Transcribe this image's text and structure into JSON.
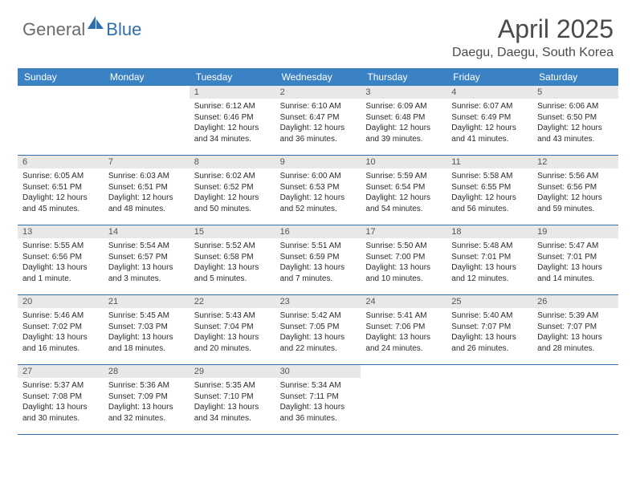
{
  "logo": {
    "text1": "General",
    "text2": "Blue"
  },
  "title": "April 2025",
  "location": "Daegu, Daegu, South Korea",
  "colors": {
    "header_bg": "#3b82c4",
    "header_text": "#ffffff",
    "divider": "#2f6fad",
    "daynum_bg": "#e8e8e8",
    "body_text": "#2b2b2b",
    "logo_gray": "#6b6b6b",
    "logo_blue": "#2f6fad"
  },
  "day_headers": [
    "Sunday",
    "Monday",
    "Tuesday",
    "Wednesday",
    "Thursday",
    "Friday",
    "Saturday"
  ],
  "weeks": [
    [
      {
        "n": "",
        "sunrise": "",
        "sunset": "",
        "daylight": ""
      },
      {
        "n": "",
        "sunrise": "",
        "sunset": "",
        "daylight": ""
      },
      {
        "n": "1",
        "sunrise": "Sunrise: 6:12 AM",
        "sunset": "Sunset: 6:46 PM",
        "daylight": "Daylight: 12 hours and 34 minutes."
      },
      {
        "n": "2",
        "sunrise": "Sunrise: 6:10 AM",
        "sunset": "Sunset: 6:47 PM",
        "daylight": "Daylight: 12 hours and 36 minutes."
      },
      {
        "n": "3",
        "sunrise": "Sunrise: 6:09 AM",
        "sunset": "Sunset: 6:48 PM",
        "daylight": "Daylight: 12 hours and 39 minutes."
      },
      {
        "n": "4",
        "sunrise": "Sunrise: 6:07 AM",
        "sunset": "Sunset: 6:49 PM",
        "daylight": "Daylight: 12 hours and 41 minutes."
      },
      {
        "n": "5",
        "sunrise": "Sunrise: 6:06 AM",
        "sunset": "Sunset: 6:50 PM",
        "daylight": "Daylight: 12 hours and 43 minutes."
      }
    ],
    [
      {
        "n": "6",
        "sunrise": "Sunrise: 6:05 AM",
        "sunset": "Sunset: 6:51 PM",
        "daylight": "Daylight: 12 hours and 45 minutes."
      },
      {
        "n": "7",
        "sunrise": "Sunrise: 6:03 AM",
        "sunset": "Sunset: 6:51 PM",
        "daylight": "Daylight: 12 hours and 48 minutes."
      },
      {
        "n": "8",
        "sunrise": "Sunrise: 6:02 AM",
        "sunset": "Sunset: 6:52 PM",
        "daylight": "Daylight: 12 hours and 50 minutes."
      },
      {
        "n": "9",
        "sunrise": "Sunrise: 6:00 AM",
        "sunset": "Sunset: 6:53 PM",
        "daylight": "Daylight: 12 hours and 52 minutes."
      },
      {
        "n": "10",
        "sunrise": "Sunrise: 5:59 AM",
        "sunset": "Sunset: 6:54 PM",
        "daylight": "Daylight: 12 hours and 54 minutes."
      },
      {
        "n": "11",
        "sunrise": "Sunrise: 5:58 AM",
        "sunset": "Sunset: 6:55 PM",
        "daylight": "Daylight: 12 hours and 56 minutes."
      },
      {
        "n": "12",
        "sunrise": "Sunrise: 5:56 AM",
        "sunset": "Sunset: 6:56 PM",
        "daylight": "Daylight: 12 hours and 59 minutes."
      }
    ],
    [
      {
        "n": "13",
        "sunrise": "Sunrise: 5:55 AM",
        "sunset": "Sunset: 6:56 PM",
        "daylight": "Daylight: 13 hours and 1 minute."
      },
      {
        "n": "14",
        "sunrise": "Sunrise: 5:54 AM",
        "sunset": "Sunset: 6:57 PM",
        "daylight": "Daylight: 13 hours and 3 minutes."
      },
      {
        "n": "15",
        "sunrise": "Sunrise: 5:52 AM",
        "sunset": "Sunset: 6:58 PM",
        "daylight": "Daylight: 13 hours and 5 minutes."
      },
      {
        "n": "16",
        "sunrise": "Sunrise: 5:51 AM",
        "sunset": "Sunset: 6:59 PM",
        "daylight": "Daylight: 13 hours and 7 minutes."
      },
      {
        "n": "17",
        "sunrise": "Sunrise: 5:50 AM",
        "sunset": "Sunset: 7:00 PM",
        "daylight": "Daylight: 13 hours and 10 minutes."
      },
      {
        "n": "18",
        "sunrise": "Sunrise: 5:48 AM",
        "sunset": "Sunset: 7:01 PM",
        "daylight": "Daylight: 13 hours and 12 minutes."
      },
      {
        "n": "19",
        "sunrise": "Sunrise: 5:47 AM",
        "sunset": "Sunset: 7:01 PM",
        "daylight": "Daylight: 13 hours and 14 minutes."
      }
    ],
    [
      {
        "n": "20",
        "sunrise": "Sunrise: 5:46 AM",
        "sunset": "Sunset: 7:02 PM",
        "daylight": "Daylight: 13 hours and 16 minutes."
      },
      {
        "n": "21",
        "sunrise": "Sunrise: 5:45 AM",
        "sunset": "Sunset: 7:03 PM",
        "daylight": "Daylight: 13 hours and 18 minutes."
      },
      {
        "n": "22",
        "sunrise": "Sunrise: 5:43 AM",
        "sunset": "Sunset: 7:04 PM",
        "daylight": "Daylight: 13 hours and 20 minutes."
      },
      {
        "n": "23",
        "sunrise": "Sunrise: 5:42 AM",
        "sunset": "Sunset: 7:05 PM",
        "daylight": "Daylight: 13 hours and 22 minutes."
      },
      {
        "n": "24",
        "sunrise": "Sunrise: 5:41 AM",
        "sunset": "Sunset: 7:06 PM",
        "daylight": "Daylight: 13 hours and 24 minutes."
      },
      {
        "n": "25",
        "sunrise": "Sunrise: 5:40 AM",
        "sunset": "Sunset: 7:07 PM",
        "daylight": "Daylight: 13 hours and 26 minutes."
      },
      {
        "n": "26",
        "sunrise": "Sunrise: 5:39 AM",
        "sunset": "Sunset: 7:07 PM",
        "daylight": "Daylight: 13 hours and 28 minutes."
      }
    ],
    [
      {
        "n": "27",
        "sunrise": "Sunrise: 5:37 AM",
        "sunset": "Sunset: 7:08 PM",
        "daylight": "Daylight: 13 hours and 30 minutes."
      },
      {
        "n": "28",
        "sunrise": "Sunrise: 5:36 AM",
        "sunset": "Sunset: 7:09 PM",
        "daylight": "Daylight: 13 hours and 32 minutes."
      },
      {
        "n": "29",
        "sunrise": "Sunrise: 5:35 AM",
        "sunset": "Sunset: 7:10 PM",
        "daylight": "Daylight: 13 hours and 34 minutes."
      },
      {
        "n": "30",
        "sunrise": "Sunrise: 5:34 AM",
        "sunset": "Sunset: 7:11 PM",
        "daylight": "Daylight: 13 hours and 36 minutes."
      },
      {
        "n": "",
        "sunrise": "",
        "sunset": "",
        "daylight": ""
      },
      {
        "n": "",
        "sunrise": "",
        "sunset": "",
        "daylight": ""
      },
      {
        "n": "",
        "sunrise": "",
        "sunset": "",
        "daylight": ""
      }
    ]
  ]
}
